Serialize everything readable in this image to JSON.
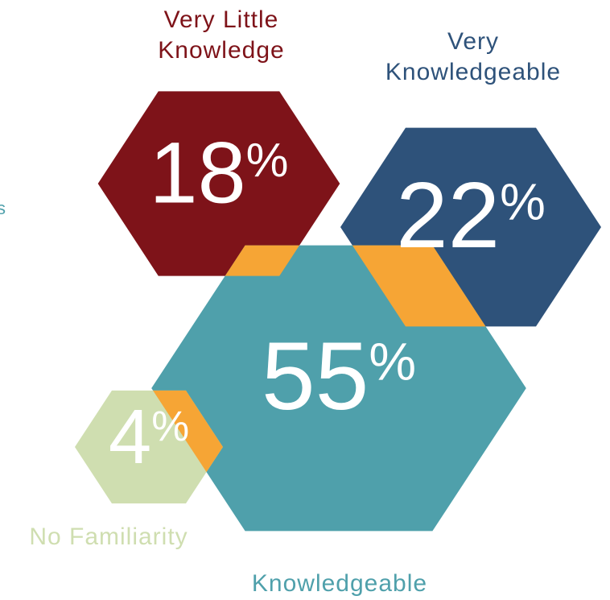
{
  "chart_data": {
    "type": "hexagon",
    "categories": [
      "Very Little Knowledge",
      "Very Knowledgeable",
      "Knowledgeable",
      "No Familiarity"
    ],
    "values": [
      18,
      22,
      55,
      4
    ],
    "value_labels": [
      "18%",
      "22%",
      "55%",
      "4%"
    ],
    "colors": [
      "#7e1319",
      "#2e527a",
      "#4fa0ab",
      "#cfdeb0"
    ],
    "overlap_color": "#f6a535",
    "annotations": [
      "s"
    ]
  }
}
